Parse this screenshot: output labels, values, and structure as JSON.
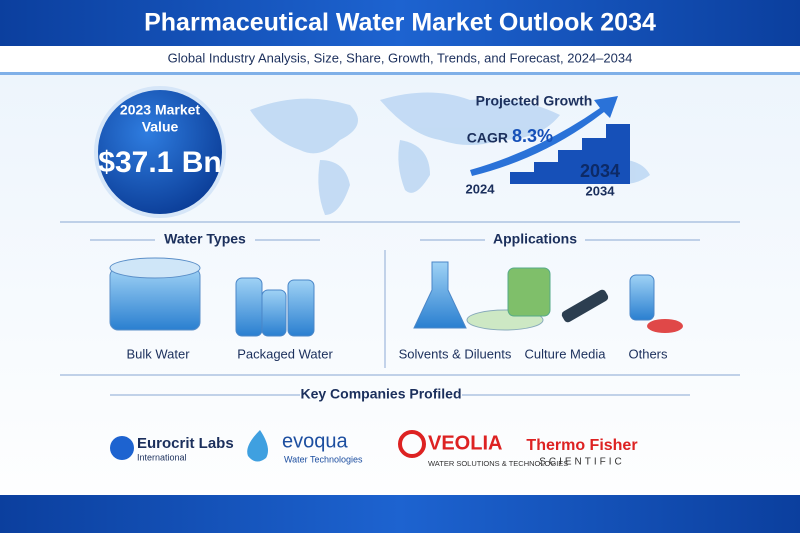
{
  "header": {
    "title": "Pharmaceutical Water Market Outlook 2034",
    "subtitle": "Global Industry Analysis, Size, Share, Growth, Trends, and Forecast, 2024–2034"
  },
  "market": {
    "label_lines": [
      "2023 Market",
      "Value"
    ],
    "value": "$37.1 Bn"
  },
  "growth": {
    "title": "Projected Growth",
    "cagr_label": "CAGR",
    "cagr_value": "8.3%",
    "start": "2024",
    "highlight": "2034",
    "end": "2034"
  },
  "water_types": {
    "title": "Water Types",
    "items": [
      "Bulk Water",
      "Packaged Water"
    ]
  },
  "applications": {
    "title": "Applications",
    "items": [
      "Solvents & Diluents",
      "Culture Media",
      "Others"
    ]
  },
  "companies": {
    "title": "Key Companies Profiled",
    "logos": [
      {
        "name": "Eurocrit Labs",
        "sub": "International"
      },
      {
        "name": "evoqua",
        "sub": "Water Technologies"
      },
      {
        "name": "VEOLIA",
        "sub": "WATER SOLUTIONS & TECHNOLOGIES"
      },
      {
        "name": "Thermo Fisher",
        "sub": "SCIENTIFIC"
      }
    ]
  }
}
